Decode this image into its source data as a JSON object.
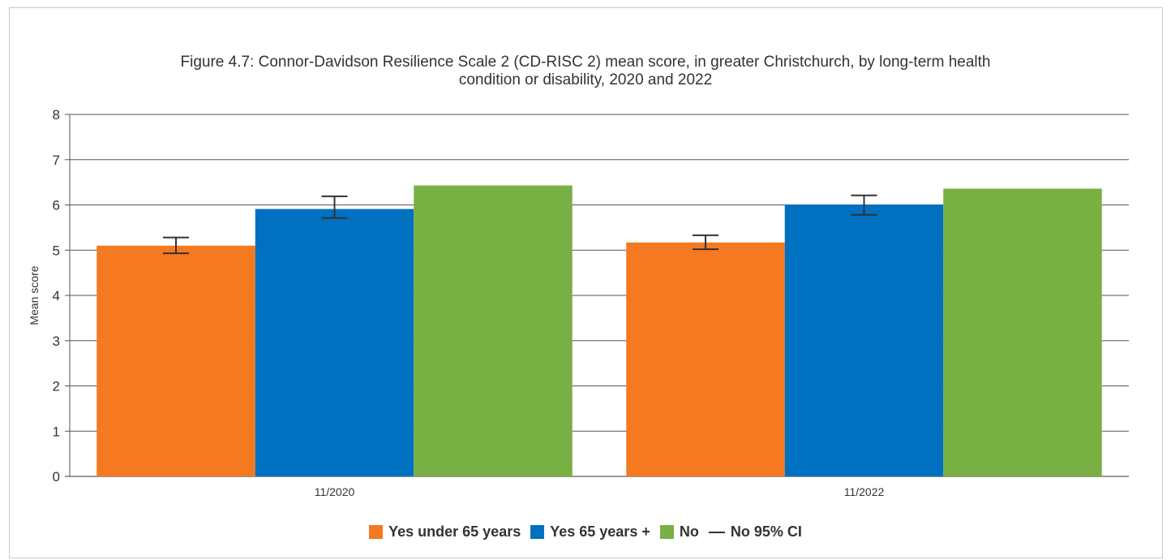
{
  "chart_data": {
    "type": "bar",
    "title_line1": "Figure 4.7: Connor-Davidson Resilience Scale 2 (CD-RISC 2) mean score, in greater Christchurch, by long-term health",
    "title_line2": "condition or disability, 2020 and 2022",
    "ylabel": "Mean score",
    "ylim": [
      0,
      8
    ],
    "yticks": [
      0,
      1,
      2,
      3,
      4,
      5,
      6,
      7,
      8
    ],
    "grid": true,
    "legend_position": "bottom",
    "categories": [
      "11/2020",
      "11/2022"
    ],
    "series": [
      {
        "name": "Yes under 65 years",
        "color": "#f47920",
        "values": [
          5.1,
          5.17
        ],
        "ci_low": [
          4.93,
          5.02
        ],
        "ci_high": [
          5.28,
          5.33
        ]
      },
      {
        "name": "Yes 65 years +",
        "color": "#0070c0",
        "values": [
          5.91,
          6.01
        ],
        "ci_low": [
          5.71,
          5.78
        ],
        "ci_high": [
          6.19,
          6.21
        ]
      },
      {
        "name": "No",
        "color": "#79b043",
        "values": [
          6.43,
          6.36
        ]
      }
    ],
    "ci_legend_label": "No 95% CI"
  }
}
